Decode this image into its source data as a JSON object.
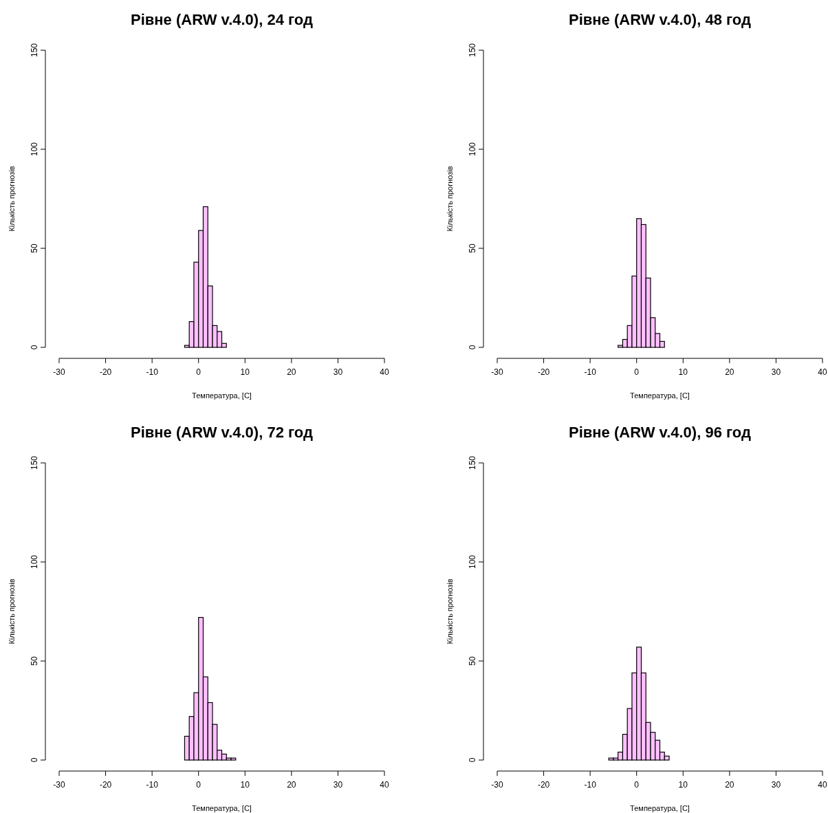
{
  "chart_data": [
    {
      "type": "histogram",
      "title": "Рівне (ARW v.4.0), 24 год",
      "xlabel": "Температура, [C]",
      "ylabel": "Кількість прогнозів",
      "color": "#ffc0ff",
      "bins": [
        -3,
        -2,
        -1,
        0,
        1,
        2,
        3,
        4,
        5,
        6
      ],
      "values": [
        1,
        13,
        43,
        59,
        71,
        31,
        11,
        8,
        2
      ],
      "xlim": [
        -30,
        40
      ],
      "xticks": [
        -30,
        -20,
        -10,
        0,
        10,
        20,
        30,
        40
      ],
      "ylim": [
        0,
        150
      ],
      "yticks": [
        0,
        50,
        100,
        150
      ]
    },
    {
      "type": "histogram",
      "title": "Рівне (ARW v.4.0), 48 год",
      "xlabel": "Температура, [C]",
      "ylabel": "Кількість прогнозів",
      "color": "#ffc0ff",
      "bins": [
        -4,
        -3,
        -2,
        -1,
        0,
        1,
        2,
        3,
        4,
        5,
        6
      ],
      "values": [
        1,
        4,
        11,
        36,
        65,
        62,
        35,
        15,
        7,
        3
      ],
      "xlim": [
        -30,
        40
      ],
      "xticks": [
        -30,
        -20,
        -10,
        0,
        10,
        20,
        30,
        40
      ],
      "ylim": [
        0,
        150
      ],
      "yticks": [
        0,
        50,
        100,
        150
      ]
    },
    {
      "type": "histogram",
      "title": "Рівне (ARW v.4.0), 72 год",
      "xlabel": "Температура, [C]",
      "ylabel": "Кількість прогнозів",
      "color": "#ffc0ff",
      "bins": [
        -3,
        -2,
        -1,
        0,
        1,
        2,
        3,
        4,
        5,
        6,
        7,
        8
      ],
      "values": [
        12,
        22,
        34,
        72,
        42,
        29,
        18,
        5,
        3,
        1,
        1
      ],
      "xlim": [
        -30,
        40
      ],
      "xticks": [
        -30,
        -20,
        -10,
        0,
        10,
        20,
        30,
        40
      ],
      "ylim": [
        0,
        150
      ],
      "yticks": [
        0,
        50,
        100,
        150
      ]
    },
    {
      "type": "histogram",
      "title": "Рівне (ARW v.4.0), 96 год",
      "xlabel": "Температура, [C]",
      "ylabel": "Кількість прогнозів",
      "color": "#ffc0ff",
      "bins": [
        -6,
        -5,
        -4,
        -3,
        -2,
        -1,
        0,
        1,
        2,
        3,
        4,
        5,
        6,
        7
      ],
      "values": [
        1,
        1,
        4,
        13,
        26,
        44,
        57,
        44,
        19,
        14,
        10,
        4,
        2
      ],
      "xlim": [
        -30,
        40
      ],
      "xticks": [
        -30,
        -20,
        -10,
        0,
        10,
        20,
        30,
        40
      ],
      "ylim": [
        0,
        150
      ],
      "yticks": [
        0,
        50,
        100,
        150
      ]
    }
  ]
}
